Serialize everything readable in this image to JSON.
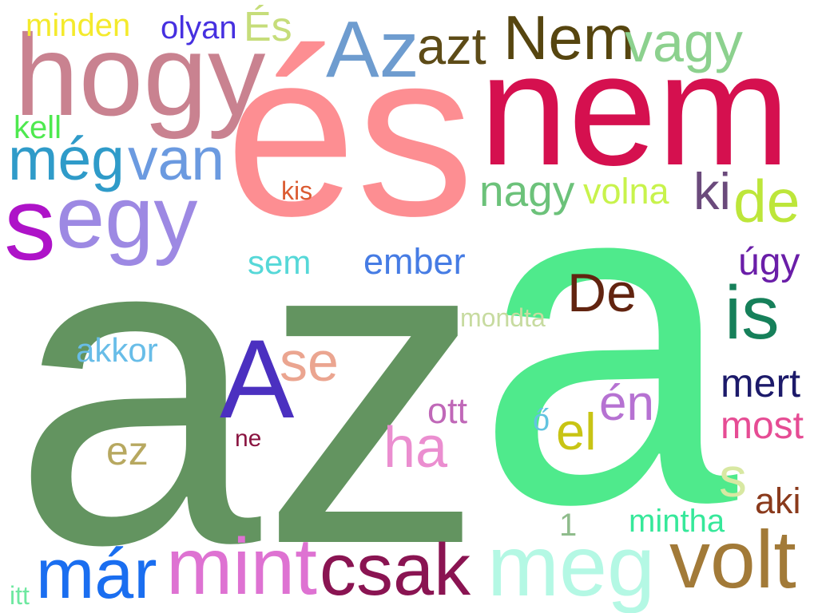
{
  "words": {
    "az": {
      "text": "az",
      "color": "#639460"
    },
    "a": {
      "text": "a",
      "color": "#4fea8c"
    },
    "es": {
      "text": "és",
      "color": "#fd8e92"
    },
    "nem": {
      "text": "nem",
      "color": "#d5104f"
    },
    "hogy": {
      "text": "hogy",
      "color": "#c98290"
    },
    "Az": {
      "text": "Az",
      "color": "#6e9ccf"
    },
    "azt": {
      "text": "azt",
      "color": "#5d4b17"
    },
    "Nem": {
      "text": "Nem",
      "color": "#56450f"
    },
    "vagy": {
      "text": "vagy",
      "color": "#8cd18e"
    },
    "minden": {
      "text": "minden",
      "color": "#f4ea2c"
    },
    "olyan": {
      "text": "olyan",
      "color": "#4630e0"
    },
    "Es": {
      "text": "És",
      "color": "#c6dd7a"
    },
    "kell": {
      "text": "kell",
      "color": "#4ee94f"
    },
    "meg": {
      "text": "még",
      "color": "#2f9bc9"
    },
    "van": {
      "text": "van",
      "color": "#6b9ae0"
    },
    "s": {
      "text": "s",
      "color": "#ae13c8"
    },
    "egy": {
      "text": "egy",
      "color": "#9d89e3"
    },
    "kis": {
      "text": "kis",
      "color": "#db5c32"
    },
    "nagy": {
      "text": "nagy",
      "color": "#6cc27a"
    },
    "volna": {
      "text": "volna",
      "color": "#c8f34c"
    },
    "ki": {
      "text": "ki",
      "color": "#6b4a7c"
    },
    "de": {
      "text": "de",
      "color": "#bde63a"
    },
    "sem": {
      "text": "sem",
      "color": "#56d8d8"
    },
    "ember": {
      "text": "ember",
      "color": "#467ce4"
    },
    "ugy": {
      "text": "úgy",
      "color": "#6a1ea8"
    },
    "De": {
      "text": "De",
      "color": "#622410"
    },
    "is": {
      "text": "is",
      "color": "#16805a"
    },
    "mondta": {
      "text": "mondta",
      "color": "#c7dba0"
    },
    "akkor": {
      "text": "akkor",
      "color": "#68bde8"
    },
    "A": {
      "text": "A",
      "color": "#4b30c0"
    },
    "se": {
      "text": "se",
      "color": "#eba590"
    },
    "mert": {
      "text": "mert",
      "color": "#1c1a6a"
    },
    "en": {
      "text": "én",
      "color": "#b672d2"
    },
    "ott": {
      "text": "ott",
      "color": "#c068b8"
    },
    "o": {
      "text": "ő",
      "color": "#62c4e0"
    },
    "el": {
      "text": "el",
      "color": "#c8c414"
    },
    "most": {
      "text": "most",
      "color": "#e64c94"
    },
    "ha": {
      "text": "ha",
      "color": "#eb8ed0"
    },
    "ne": {
      "text": "ne",
      "color": "#8a1440"
    },
    "ez": {
      "text": "ez",
      "color": "#b7a860"
    },
    "s2": {
      "text": "s",
      "color": "#d8e8a2"
    },
    "aki": {
      "text": "aki",
      "color": "#8a3a1c"
    },
    "one": {
      "text": "1",
      "color": "#8fbc8c"
    },
    "mintha": {
      "text": "mintha",
      "color": "#36e89a"
    },
    "mar": {
      "text": "már",
      "color": "#1a6ef0"
    },
    "mint": {
      "text": "mint",
      "color": "#de72d2"
    },
    "csak": {
      "text": "csak",
      "color": "#8a1452"
    },
    "meg2": {
      "text": "meg",
      "color": "#b4f8e4"
    },
    "volt": {
      "text": "volt",
      "color": "#a27a38"
    },
    "itt": {
      "text": "itt",
      "color": "#6ee8a0"
    }
  }
}
